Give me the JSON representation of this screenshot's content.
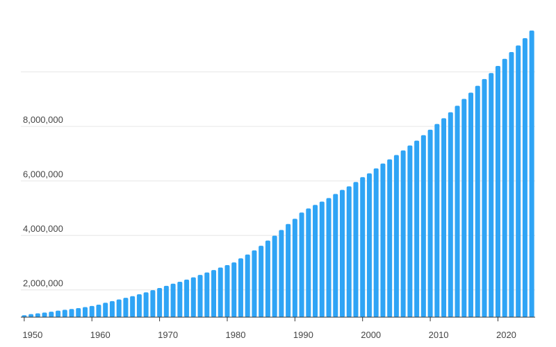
{
  "chart_data": {
    "type": "bar",
    "title": "",
    "xlabel": "",
    "ylabel": "",
    "bar_color": "#2fa4f5",
    "grid": true,
    "ylim": [
      1000000,
      11400000
    ],
    "y_ticks": [
      2000000,
      4000000,
      6000000,
      8000000,
      10000000
    ],
    "y_tick_labels": [
      "2,000,000",
      "4,000,000",
      "6,000,000",
      "8,000,000",
      ""
    ],
    "x_ticks": [
      1950,
      1960,
      1970,
      1980,
      1990,
      2000,
      2010,
      2020
    ],
    "x_tick_labels": [
      "1950",
      "1960",
      "1970",
      "1980",
      "1990",
      "2000",
      "2010",
      "2020"
    ],
    "categories": [
      1950,
      1951,
      1952,
      1953,
      1954,
      1955,
      1956,
      1957,
      1958,
      1959,
      1960,
      1961,
      1962,
      1963,
      1964,
      1965,
      1966,
      1967,
      1968,
      1969,
      1970,
      1971,
      1972,
      1973,
      1974,
      1975,
      1976,
      1977,
      1978,
      1979,
      1980,
      1981,
      1982,
      1983,
      1984,
      1985,
      1986,
      1987,
      1988,
      1989,
      1990,
      1991,
      1992,
      1993,
      1994,
      1995,
      1996,
      1997,
      1998,
      1999,
      2000,
      2001,
      2002,
      2003,
      2004,
      2005,
      2006,
      2007,
      2008,
      2009,
      2010,
      2011,
      2012,
      2013,
      2014,
      2015,
      2016,
      2017,
      2018,
      2019,
      2020,
      2021,
      2022,
      2023,
      2024,
      2025
    ],
    "values": [
      1070000,
      1110000,
      1140000,
      1170000,
      1200000,
      1240000,
      1270000,
      1300000,
      1330000,
      1370000,
      1410000,
      1460000,
      1530000,
      1590000,
      1650000,
      1710000,
      1770000,
      1840000,
      1910000,
      1990000,
      2070000,
      2150000,
      2230000,
      2300000,
      2380000,
      2460000,
      2550000,
      2640000,
      2730000,
      2820000,
      2910000,
      3010000,
      3160000,
      3300000,
      3450000,
      3620000,
      3810000,
      3990000,
      4200000,
      4420000,
      4610000,
      4840000,
      4990000,
      5120000,
      5240000,
      5370000,
      5520000,
      5670000,
      5800000,
      5960000,
      6140000,
      6280000,
      6460000,
      6640000,
      6790000,
      6950000,
      7120000,
      7300000,
      7480000,
      7680000,
      7880000,
      8090000,
      8300000,
      8520000,
      8760000,
      9010000,
      9240000,
      9490000,
      9740000,
      9960000,
      10220000,
      10480000,
      10730000,
      10970000,
      11240000,
      11520000
    ]
  }
}
